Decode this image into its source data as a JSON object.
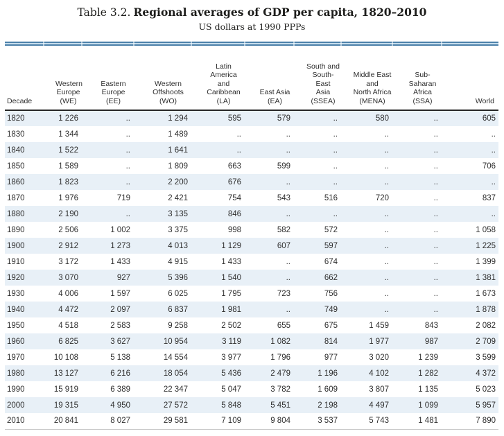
{
  "title": {
    "prefix": "Table 3.2.",
    "main": "Regional averages of GDP per capita, 1820–2010",
    "subtitle": "US dollars at 1990 PPPs"
  },
  "table": {
    "missing_marker": "..",
    "columns": [
      {
        "key": "decade",
        "label": "Decade",
        "lines": [
          "Decade"
        ]
      },
      {
        "key": "we",
        "label": "Western Europe (WE)",
        "lines": [
          "Western",
          "Europe",
          "(WE)"
        ]
      },
      {
        "key": "ee",
        "label": "Eastern Europe (EE)",
        "lines": [
          "Eastern",
          "Europe",
          "(EE)"
        ]
      },
      {
        "key": "wo",
        "label": "Western Offshoots (WO)",
        "lines": [
          "Western",
          "Offshoots",
          "(WO)"
        ]
      },
      {
        "key": "la",
        "label": "Latin America and Caribbean (LA)",
        "lines": [
          "Latin",
          "America",
          "and",
          "Caribbean",
          "(LA)"
        ]
      },
      {
        "key": "ea",
        "label": "East Asia (EA)",
        "lines": [
          "East Asia",
          "(EA)"
        ]
      },
      {
        "key": "ssea",
        "label": "South and South-East Asia (SSEA)",
        "lines": [
          "South and",
          "South-East",
          "Asia",
          "(SSEA)"
        ]
      },
      {
        "key": "mena",
        "label": "Middle East and North Africa (MENA)",
        "lines": [
          "Middle East",
          "and",
          "North Africa",
          "(MENA)"
        ]
      },
      {
        "key": "ssa",
        "label": "Sub-Saharan Africa (SSA)",
        "lines": [
          "Sub-Saharan",
          "Africa",
          "(SSA)"
        ]
      },
      {
        "key": "world",
        "label": "World",
        "lines": [
          "World"
        ]
      }
    ],
    "rows": [
      {
        "decade": "1820",
        "values": [
          "1 226",
          "..",
          "1 294",
          "595",
          "579",
          "..",
          "580",
          "..",
          "605"
        ]
      },
      {
        "decade": "1830",
        "values": [
          "1 344",
          "..",
          "1 489",
          "..",
          "..",
          "..",
          "..",
          "..",
          ".."
        ]
      },
      {
        "decade": "1840",
        "values": [
          "1 522",
          "..",
          "1 641",
          "..",
          "..",
          "..",
          "..",
          "..",
          ".."
        ]
      },
      {
        "decade": "1850",
        "values": [
          "1 589",
          "..",
          "1 809",
          "663",
          "599",
          "..",
          "..",
          "..",
          "706"
        ]
      },
      {
        "decade": "1860",
        "values": [
          "1 823",
          "..",
          "2 200",
          "676",
          "..",
          "..",
          "..",
          "..",
          ".."
        ]
      },
      {
        "decade": "1870",
        "values": [
          "1 976",
          "719",
          "2 421",
          "754",
          "543",
          "516",
          "720",
          "..",
          "837"
        ]
      },
      {
        "decade": "1880",
        "values": [
          "2 190",
          "..",
          "3 135",
          "846",
          "..",
          "..",
          "..",
          "..",
          ".."
        ]
      },
      {
        "decade": "1890",
        "values": [
          "2 506",
          "1 002",
          "3 375",
          "998",
          "582",
          "572",
          "..",
          "..",
          "1 058"
        ]
      },
      {
        "decade": "1900",
        "values": [
          "2 912",
          "1 273",
          "4 013",
          "1 129",
          "607",
          "597",
          "..",
          "..",
          "1 225"
        ]
      },
      {
        "decade": "1910",
        "values": [
          "3 172",
          "1 433",
          "4 915",
          "1 433",
          "..",
          "674",
          "..",
          "..",
          "1 399"
        ]
      },
      {
        "decade": "1920",
        "values": [
          "3 070",
          "927",
          "5 396",
          "1 540",
          "..",
          "662",
          "..",
          "..",
          "1 381"
        ]
      },
      {
        "decade": "1930",
        "values": [
          "4 006",
          "1 597",
          "6 025",
          "1 795",
          "723",
          "756",
          "..",
          "..",
          "1 673"
        ]
      },
      {
        "decade": "1940",
        "values": [
          "4 472",
          "2 097",
          "6 837",
          "1 981",
          "..",
          "749",
          "..",
          "..",
          "1 878"
        ]
      },
      {
        "decade": "1950",
        "values": [
          "4 518",
          "2 583",
          "9 258",
          "2 502",
          "655",
          "675",
          "1 459",
          "843",
          "2 082"
        ]
      },
      {
        "decade": "1960",
        "values": [
          "6 825",
          "3 627",
          "10 954",
          "3 119",
          "1 082",
          "814",
          "1 977",
          "987",
          "2 709"
        ]
      },
      {
        "decade": "1970",
        "values": [
          "10 108",
          "5 138",
          "14 554",
          "3 977",
          "1 796",
          "977",
          "3 020",
          "1 239",
          "3 599"
        ]
      },
      {
        "decade": "1980",
        "values": [
          "13 127",
          "6 216",
          "18 054",
          "5 436",
          "2 479",
          "1 196",
          "4 102",
          "1 282",
          "4 372"
        ]
      },
      {
        "decade": "1990",
        "values": [
          "15 919",
          "6 389",
          "22 347",
          "5 047",
          "3 782",
          "1 609",
          "3 807",
          "1 135",
          "5 023"
        ]
      },
      {
        "decade": "2000",
        "values": [
          "19 315",
          "4 950",
          "27 572",
          "5 848",
          "5 451",
          "2 198",
          "4 497",
          "1 099",
          "5 957"
        ]
      },
      {
        "decade": "2010",
        "values": [
          "20 841",
          "8 027",
          "29 581",
          "7 109",
          "9 804",
          "3 537",
          "5 743",
          "1 481",
          "7 890"
        ]
      }
    ]
  }
}
